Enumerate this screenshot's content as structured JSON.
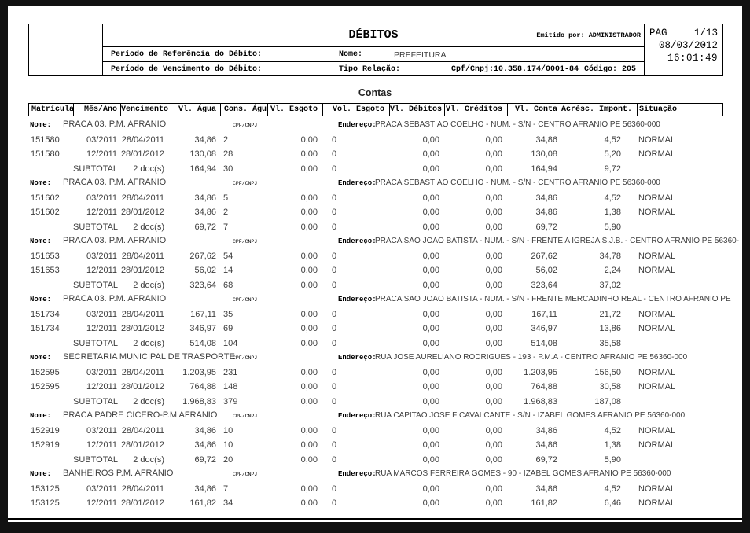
{
  "header": {
    "title": "DÉBITOS",
    "emitted_by_label": "Emitido por:",
    "emitted_by": "ADMINISTRADOR",
    "pag_label": "PAG",
    "page": "1/13",
    "date": "08/03/2012",
    "time": "16:01:49",
    "ref_period_label": "Período de Referência do Débito:",
    "due_period_label": "Período de Vencimento do Débito:",
    "nome_label": "Nome:",
    "nome_value": "PREFEITURA",
    "tipo_relacao_label": "Tipo Relação:",
    "cpf_cnpj": "Cpf/Cnpj:10.358.174/0001-84",
    "codigo": "Código: 205"
  },
  "section_title": "Contas",
  "table": {
    "columns": [
      "Matrícula",
      "Mês/Ano",
      "Vencimento",
      "Vl. Água",
      "Cons. Água",
      "Vl. Esgoto",
      "Vol. Esgoto",
      "Vl. Débitos",
      "Vl. Créditos",
      "Vl. Conta",
      "Acrésc. Impont.",
      "Situação"
    ],
    "group_labels": {
      "nome": "Nome:",
      "cpf_cnpj": "CPF/CNPJ",
      "endereco": "Endereço:"
    },
    "groups": [
      {
        "nome": "PRACA 03.  P.M. AFRANIO",
        "endereco": "PRACA SEBASTIAO COELHO - NUM. - S/N - CENTRO AFRANIO PE 56360-000",
        "rows": [
          [
            "151580",
            "03/2011",
            "28/04/2011",
            "34,86",
            "2",
            "0,00",
            "0",
            "0,00",
            "0,00",
            "34,86",
            "4,52",
            "NORMAL"
          ],
          [
            "151580",
            "12/2011",
            "28/01/2012",
            "130,08",
            "28",
            "0,00",
            "0",
            "0,00",
            "0,00",
            "130,08",
            "5,20",
            "NORMAL"
          ]
        ],
        "subtotal": [
          "",
          "SUBTOTAL",
          "2 doc(s)",
          "164,94",
          "30",
          "0,00",
          "0",
          "0,00",
          "0,00",
          "164,94",
          "9,72",
          ""
        ]
      },
      {
        "nome": "PRACA 03.  P.M. AFRANIO",
        "endereco": "PRACA SEBASTIAO COELHO - NUM. - S/N - CENTRO AFRANIO PE 56360-000",
        "rows": [
          [
            "151602",
            "03/2011",
            "28/04/2011",
            "34,86",
            "5",
            "0,00",
            "0",
            "0,00",
            "0,00",
            "34,86",
            "4,52",
            "NORMAL"
          ],
          [
            "151602",
            "12/2011",
            "28/01/2012",
            "34,86",
            "2",
            "0,00",
            "0",
            "0,00",
            "0,00",
            "34,86",
            "1,38",
            "NORMAL"
          ]
        ],
        "subtotal": [
          "",
          "SUBTOTAL",
          "2 doc(s)",
          "69,72",
          "7",
          "0,00",
          "0",
          "0,00",
          "0,00",
          "69,72",
          "5,90",
          ""
        ]
      },
      {
        "nome": "PRACA 03.  P.M. AFRANIO",
        "endereco": "PRACA SAO JOAO BATISTA - NUM. - S/N - FRENTE A IGREJA S.J.B. - CENTRO AFRANIO PE 56360-",
        "rows": [
          [
            "151653",
            "03/2011",
            "28/04/2011",
            "267,62",
            "54",
            "0,00",
            "0",
            "0,00",
            "0,00",
            "267,62",
            "34,78",
            "NORMAL"
          ],
          [
            "151653",
            "12/2011",
            "28/01/2012",
            "56,02",
            "14",
            "0,00",
            "0",
            "0,00",
            "0,00",
            "56,02",
            "2,24",
            "NORMAL"
          ]
        ],
        "subtotal": [
          "",
          "SUBTOTAL",
          "2 doc(s)",
          "323,64",
          "68",
          "0,00",
          "0",
          "0,00",
          "0,00",
          "323,64",
          "37,02",
          ""
        ]
      },
      {
        "nome": "PRACA 03.  P.M. AFRANIO",
        "endereco": "PRACA SAO JOAO BATISTA - NUM. - S/N - FRENTE MERCADINHO REAL - CENTRO AFRANIO PE",
        "rows": [
          [
            "151734",
            "03/2011",
            "28/04/2011",
            "167,11",
            "35",
            "0,00",
            "0",
            "0,00",
            "0,00",
            "167,11",
            "21,72",
            "NORMAL"
          ],
          [
            "151734",
            "12/2011",
            "28/01/2012",
            "346,97",
            "69",
            "0,00",
            "0",
            "0,00",
            "0,00",
            "346,97",
            "13,86",
            "NORMAL"
          ]
        ],
        "subtotal": [
          "",
          "SUBTOTAL",
          "2 doc(s)",
          "514,08",
          "104",
          "0,00",
          "0",
          "0,00",
          "0,00",
          "514,08",
          "35,58",
          ""
        ]
      },
      {
        "nome": "SECRETARIA MUNICIPAL DE TRASPORTE",
        "endereco": "RUA JOSE AURELIANO RODRIGUES - 193 - P.M.A - CENTRO AFRANIO PE 56360-000",
        "rows": [
          [
            "152595",
            "03/2011",
            "28/04/2011",
            "1.203,95",
            "231",
            "0,00",
            "0",
            "0,00",
            "0,00",
            "1.203,95",
            "156,50",
            "NORMAL"
          ],
          [
            "152595",
            "12/2011",
            "28/01/2012",
            "764,88",
            "148",
            "0,00",
            "0",
            "0,00",
            "0,00",
            "764,88",
            "30,58",
            "NORMAL"
          ]
        ],
        "subtotal": [
          "",
          "SUBTOTAL",
          "2 doc(s)",
          "1.968,83",
          "379",
          "0,00",
          "0",
          "0,00",
          "0,00",
          "1.968,83",
          "187,08",
          ""
        ]
      },
      {
        "nome": "PRACA PADRE CICERO-P.M AFRANIO",
        "endereco": "RUA CAPITAO JOSE F CAVALCANTE - S/N - IZABEL GOMES AFRANIO PE 56360-000",
        "rows": [
          [
            "152919",
            "03/2011",
            "28/04/2011",
            "34,86",
            "10",
            "0,00",
            "0",
            "0,00",
            "0,00",
            "34,86",
            "4,52",
            "NORMAL"
          ],
          [
            "152919",
            "12/2011",
            "28/01/2012",
            "34,86",
            "10",
            "0,00",
            "0",
            "0,00",
            "0,00",
            "34,86",
            "1,38",
            "NORMAL"
          ]
        ],
        "subtotal": [
          "",
          "SUBTOTAL",
          "2 doc(s)",
          "69,72",
          "20",
          "0,00",
          "0",
          "0,00",
          "0,00",
          "69,72",
          "5,90",
          ""
        ]
      },
      {
        "nome": "BANHEIROS P.M. AFRANIO",
        "endereco": "RUA MARCOS FERREIRA GOMES - 90 - IZABEL GOMES AFRANIO PE 56360-000",
        "rows": [
          [
            "153125",
            "03/2011",
            "28/04/2011",
            "34,86",
            "7",
            "0,00",
            "0",
            "0,00",
            "0,00",
            "34,86",
            "4,52",
            "NORMAL"
          ],
          [
            "153125",
            "12/2011",
            "28/01/2012",
            "161,82",
            "34",
            "0,00",
            "0",
            "0,00",
            "0,00",
            "161,82",
            "6,46",
            "NORMAL"
          ]
        ],
        "subtotal": null
      }
    ]
  }
}
